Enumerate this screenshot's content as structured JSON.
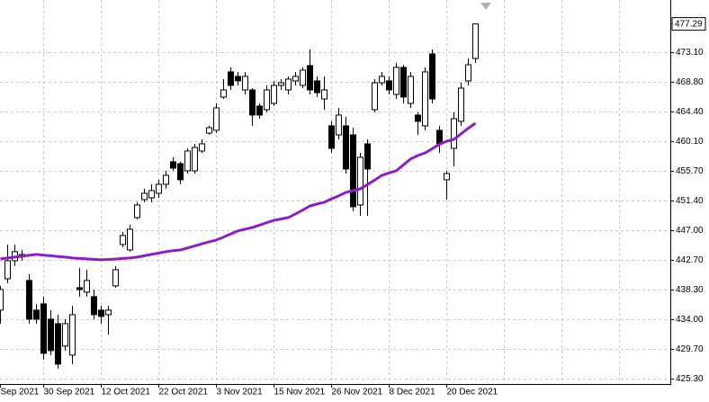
{
  "chart_data": {
    "type": "candlestick",
    "categories": [
      "Sep 2021",
      null,
      null,
      null,
      null,
      null,
      "30 Sep 2021",
      null,
      null,
      null,
      null,
      null,
      null,
      null,
      "12 Oct 2021",
      null,
      null,
      null,
      null,
      null,
      null,
      null,
      "22 Oct 2021",
      null,
      null,
      null,
      null,
      null,
      null,
      null,
      "3 Nov 2021",
      null,
      null,
      null,
      null,
      null,
      null,
      null,
      "15 Nov 2021",
      null,
      null,
      null,
      null,
      null,
      null,
      null,
      "26 Nov 2021",
      null,
      null,
      null,
      null,
      null,
      null,
      null,
      "8 Dec 2021",
      null,
      null,
      null,
      null,
      null,
      null,
      null,
      "20 Dec 2021",
      null,
      null,
      null,
      null
    ],
    "open": [
      435.33,
      439.94,
      442.58,
      443.24,
      439.68,
      435.33,
      436.25,
      434.01,
      433.35,
      430.06,
      428.74,
      438.62,
      437.97,
      437.31,
      435.33,
      434.67,
      438.89,
      444.95,
      444.16,
      448.9,
      451.54,
      451.8,
      452.46,
      453.78,
      457.08,
      456.81,
      455.76,
      455.76,
      458.66,
      461.29,
      461.69,
      466.57,
      470.26,
      469.6,
      467.62,
      467.62,
      465.25,
      464.72,
      465.64,
      468.28,
      467.62,
      468.94,
      468.28,
      471.18,
      468.94,
      466.3,
      462.35,
      461.03,
      462.35,
      461.03,
      450.75,
      459.71,
      464.72,
      468.67,
      468.94,
      466.96,
      470.92,
      465.64,
      463.93,
      462.35,
      472.89,
      461.69,
      454.44,
      459.05,
      463.01,
      468.94,
      472.23
    ],
    "high": [
      438.89,
      444.95,
      444.95,
      444.16,
      440.6,
      436.25,
      437.31,
      435.33,
      434.67,
      434.01,
      435.99,
      441.52,
      441.26,
      438.36,
      435.99,
      435.99,
      441.79,
      446.8,
      447.85,
      451.15,
      453.12,
      453.78,
      454.44,
      455.76,
      457.74,
      457.08,
      459.05,
      459.71,
      460.37,
      462.35,
      465.64,
      469.2,
      470.92,
      470.26,
      470.26,
      467.88,
      465.64,
      468.28,
      468.94,
      469.2,
      469.6,
      470.26,
      470.92,
      473.55,
      469.6,
      469.6,
      463.01,
      464.98,
      463.67,
      462.08,
      458.39,
      460.37,
      469.2,
      470.26,
      469.6,
      471.57,
      471.31,
      470.26,
      464.33,
      470.92,
      473.55,
      462.35,
      455.76,
      464.33,
      468.67,
      472.23,
      477.29
    ],
    "low": [
      433.35,
      439.28,
      441.79,
      442.58,
      433.35,
      433.35,
      428.08,
      428.74,
      426.76,
      429.4,
      427.42,
      437.31,
      437.31,
      434.01,
      433.35,
      431.77,
      438.62,
      444.56,
      443.9,
      448.64,
      451.15,
      451.15,
      451.8,
      453.12,
      455.76,
      453.78,
      455.36,
      455.36,
      458.39,
      461.03,
      461.29,
      466.3,
      467.62,
      468.28,
      466.96,
      462.35,
      463.4,
      464.33,
      465.25,
      467.62,
      466.96,
      468.28,
      467.88,
      466.96,
      466.57,
      464.72,
      458.39,
      460.37,
      455.36,
      449.83,
      449.17,
      449.17,
      464.33,
      468.28,
      466.96,
      466.3,
      465.64,
      464.98,
      461.03,
      461.69,
      465.64,
      458.39,
      451.54,
      456.42,
      462.35,
      468.28,
      471.57
    ],
    "close": [
      438.36,
      442.58,
      443.9,
      443.5,
      434.01,
      434.01,
      429.0,
      429.4,
      427.42,
      433.35,
      434.67,
      438.36,
      439.68,
      434.67,
      434.41,
      435.33,
      441.26,
      446.27,
      447.19,
      450.75,
      452.46,
      452.86,
      453.78,
      455.1,
      456.15,
      454.44,
      458.66,
      459.18,
      459.71,
      462.08,
      464.98,
      467.62,
      468.28,
      468.94,
      469.6,
      463.93,
      463.93,
      467.62,
      468.28,
      468.67,
      469.2,
      469.6,
      470.52,
      467.62,
      467.22,
      467.62,
      459.05,
      463.93,
      456.02,
      450.49,
      457.74,
      456.02,
      468.67,
      469.6,
      467.62,
      470.92,
      466.57,
      469.6,
      463.01,
      470.26,
      466.3,
      459.71,
      455.36,
      463.4,
      467.88,
      471.31,
      477.29
    ],
    "ma_color": "#8e1fbf",
    "ma": [
      442.84,
      442.97,
      443.1,
      443.23,
      443.37,
      443.5,
      443.4,
      443.3,
      443.2,
      443.1,
      442.97,
      442.9,
      442.84,
      442.77,
      442.71,
      442.76,
      442.82,
      442.9,
      442.97,
      443.1,
      443.3,
      443.5,
      443.7,
      443.9,
      444.05,
      444.16,
      444.45,
      444.75,
      445.05,
      445.35,
      445.61,
      446.05,
      446.5,
      446.95,
      447.2,
      447.46,
      447.8,
      448.15,
      448.5,
      448.7,
      448.9,
      449.45,
      450.0,
      450.6,
      450.9,
      451.15,
      451.65,
      452.1,
      452.6,
      452.85,
      453.12,
      453.75,
      454.4,
      455.1,
      455.45,
      455.76,
      456.65,
      457.5,
      458.0,
      458.39,
      459.0,
      459.65,
      460.1,
      460.37,
      461.2,
      462.0,
      462.74
    ],
    "last_price": {
      "value": 477.29,
      "label": "477.29"
    },
    "ylim": [
      424.5,
      480.8
    ],
    "yticks": [
      {
        "value": 473.1,
        "label": "473.10"
      },
      {
        "value": 468.8,
        "label": "468.80"
      },
      {
        "value": 464.4,
        "label": "464.40"
      },
      {
        "value": 460.1,
        "label": "460.10"
      },
      {
        "value": 455.7,
        "label": "455.70"
      },
      {
        "value": 451.4,
        "label": "451.40"
      },
      {
        "value": 447,
        "label": "447.00"
      },
      {
        "value": 442.7,
        "label": "442.70"
      },
      {
        "value": 438.3,
        "label": "438.30"
      },
      {
        "value": 434,
        "label": "434.00"
      },
      {
        "value": 429.7,
        "label": "429.70"
      },
      {
        "value": 425.3,
        "label": "425.30"
      }
    ],
    "grid": true
  }
}
